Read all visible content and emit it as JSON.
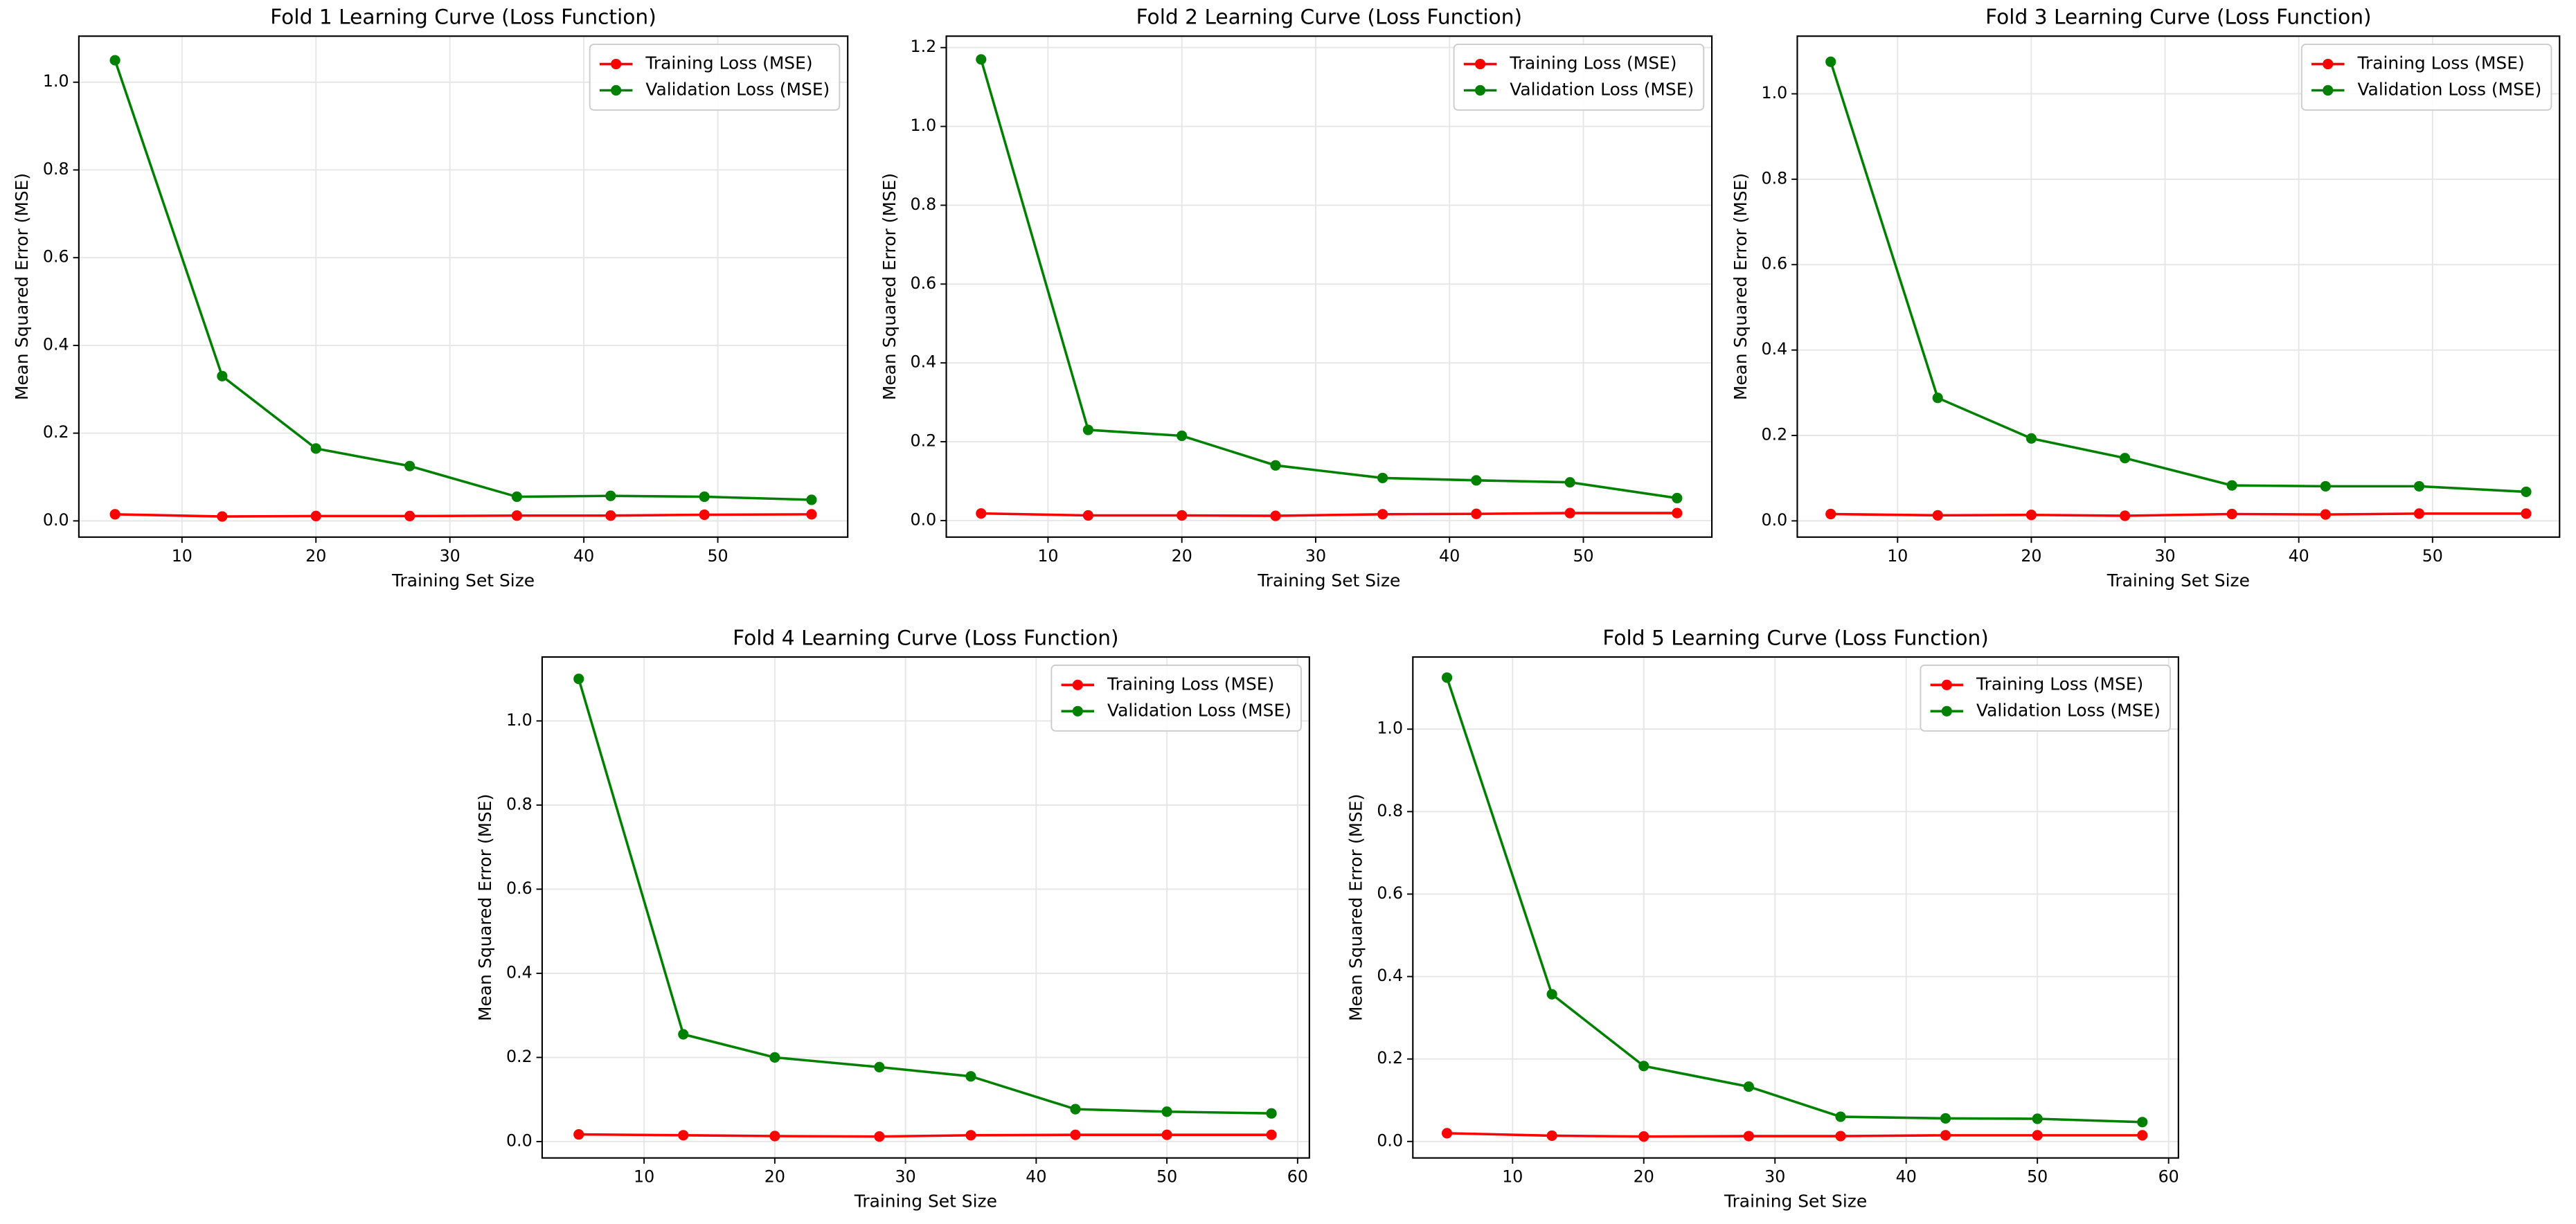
{
  "chart_data": [
    {
      "type": "line",
      "title": "Fold 1 Learning Curve (Loss Function)",
      "x_label": "Training Set Size",
      "y_label": "Mean Squared Error (MSE)",
      "x": [
        5,
        13,
        20,
        27,
        35,
        42,
        49,
        57
      ],
      "series": [
        {
          "name": "Training Loss (MSE)",
          "color": "#ff0000",
          "values": [
            0.015,
            0.01,
            0.011,
            0.011,
            0.012,
            0.012,
            0.014,
            0.015
          ]
        },
        {
          "name": "Validation Loss (MSE)",
          "color": "#008000",
          "values": [
            1.05,
            0.33,
            0.165,
            0.125,
            0.055,
            0.057,
            0.055,
            0.048
          ]
        }
      ],
      "xlim": [
        2.3,
        59.7
      ],
      "ylim": [
        -0.037,
        1.105
      ],
      "xticks": [
        10,
        20,
        30,
        40,
        50
      ],
      "yticks": [
        {
          "value": 0,
          "label": "0.0"
        },
        0.2,
        0.4,
        0.6,
        0.8,
        {
          "value": 1,
          "label": "1.0"
        }
      ],
      "grid": true,
      "legend": "upper right"
    },
    {
      "type": "line",
      "title": "Fold 2 Learning Curve (Loss Function)",
      "x_label": "Training Set Size",
      "y_label": "Mean Squared Error (MSE)",
      "x": [
        5,
        13,
        20,
        27,
        35,
        42,
        49,
        57
      ],
      "series": [
        {
          "name": "Training Loss (MSE)",
          "color": "#ff0000",
          "values": [
            0.018,
            0.013,
            0.013,
            0.012,
            0.016,
            0.017,
            0.019,
            0.019
          ]
        },
        {
          "name": "Validation Loss (MSE)",
          "color": "#008000",
          "values": [
            1.17,
            0.23,
            0.215,
            0.14,
            0.108,
            0.102,
            0.097,
            0.057
          ]
        }
      ],
      "xlim": [
        2.4,
        59.6
      ],
      "ylim": [
        -0.042,
        1.229
      ],
      "xticks": [
        10,
        20,
        30,
        40,
        50
      ],
      "yticks": [
        {
          "value": 0,
          "label": "0.0"
        },
        0.2,
        0.4,
        0.6,
        0.8,
        {
          "value": 1,
          "label": "1.0"
        },
        1.2
      ],
      "grid": true,
      "legend": "upper right"
    },
    {
      "type": "line",
      "title": "Fold 3 Learning Curve (Loss Function)",
      "x_label": "Training Set Size",
      "y_label": "Mean Squared Error (MSE)",
      "x": [
        5,
        13,
        20,
        27,
        35,
        42,
        49,
        57
      ],
      "series": [
        {
          "name": "Training Loss (MSE)",
          "color": "#ff0000",
          "values": [
            0.016,
            0.013,
            0.014,
            0.012,
            0.016,
            0.015,
            0.017,
            0.017
          ]
        },
        {
          "name": "Validation Loss (MSE)",
          "color": "#008000",
          "values": [
            1.075,
            0.288,
            0.193,
            0.147,
            0.083,
            0.081,
            0.081,
            0.068
          ]
        }
      ],
      "xlim": [
        2.5,
        59.5
      ],
      "ylim": [
        -0.038,
        1.135
      ],
      "xticks": [
        10,
        20,
        30,
        40,
        50
      ],
      "yticks": [
        {
          "value": 0,
          "label": "0.0"
        },
        0.2,
        0.4,
        0.6,
        0.8,
        {
          "value": 1,
          "label": "1.0"
        }
      ],
      "grid": true,
      "legend": "upper right"
    },
    {
      "type": "line",
      "title": "Fold 4 Learning Curve (Loss Function)",
      "x_label": "Training Set Size",
      "y_label": "Mean Squared Error (MSE)",
      "x": [
        5,
        13,
        20,
        28,
        35,
        43,
        50,
        58
      ],
      "series": [
        {
          "name": "Training Loss (MSE)",
          "color": "#ff0000",
          "values": [
            0.017,
            0.015,
            0.013,
            0.012,
            0.015,
            0.016,
            0.016,
            0.016
          ]
        },
        {
          "name": "Validation Loss (MSE)",
          "color": "#008000",
          "values": [
            1.1,
            0.255,
            0.2,
            0.177,
            0.155,
            0.077,
            0.071,
            0.067
          ]
        }
      ],
      "xlim": [
        2.2,
        60.9
      ],
      "ylim": [
        -0.039,
        1.152
      ],
      "xticks": [
        10,
        20,
        30,
        40,
        50,
        60
      ],
      "yticks": [
        {
          "value": 0,
          "label": "0.0"
        },
        0.2,
        0.4,
        0.6,
        0.8,
        {
          "value": 1,
          "label": "1.0"
        }
      ],
      "grid": true,
      "legend": "upper right"
    },
    {
      "type": "line",
      "title": "Fold 5 Learning Curve (Loss Function)",
      "x_label": "Training Set Size",
      "y_label": "Mean Squared Error (MSE)",
      "x": [
        5,
        13,
        20,
        28,
        35,
        43,
        50,
        58
      ],
      "series": [
        {
          "name": "Training Loss (MSE)",
          "color": "#ff0000",
          "values": [
            0.02,
            0.014,
            0.012,
            0.013,
            0.013,
            0.015,
            0.015,
            0.015
          ]
        },
        {
          "name": "Validation Loss (MSE)",
          "color": "#008000",
          "values": [
            1.125,
            0.357,
            0.183,
            0.133,
            0.06,
            0.056,
            0.055,
            0.047
          ]
        }
      ],
      "xlim": [
        2.4,
        60.75
      ],
      "ylim": [
        -0.04,
        1.175
      ],
      "xticks": [
        10,
        20,
        30,
        40,
        50,
        60
      ],
      "yticks": [
        {
          "value": 0,
          "label": "0.0"
        },
        0.2,
        0.4,
        0.6,
        0.8,
        {
          "value": 1,
          "label": "1.0"
        }
      ],
      "grid": true,
      "legend": "upper right"
    }
  ]
}
